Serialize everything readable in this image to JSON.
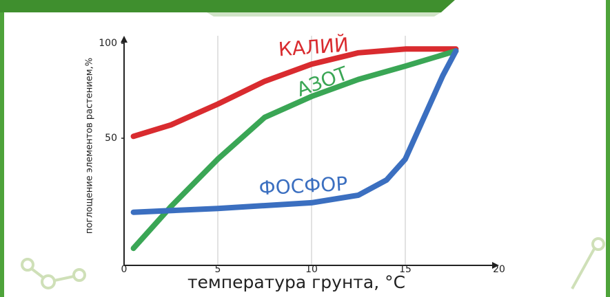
{
  "chart_data": {
    "type": "line",
    "y_label": "поглощение элементов растением,%",
    "x_label": "температура грунта, °C",
    "xlim": [
      0,
      20
    ],
    "xticks": [
      0,
      5,
      10,
      15,
      20
    ],
    "ylim": [
      -17,
      104
    ],
    "yticks": [
      50,
      100
    ],
    "grid": true,
    "series": [
      {
        "name": "КАЛИЙ",
        "color": "#d92b2f",
        "x": [
          0.5,
          2.5,
          5,
          7.5,
          10,
          12.5,
          15,
          17.7
        ],
        "values": [
          51,
          57,
          68,
          80,
          89,
          95,
          97,
          97
        ]
      },
      {
        "name": "АЗОТ",
        "color": "#3aa655",
        "x": [
          0.5,
          2.5,
          5,
          7.5,
          10,
          12.5,
          15,
          17.7
        ],
        "values": [
          -8,
          14,
          39,
          61,
          72,
          81,
          88,
          96
        ]
      },
      {
        "name": "ФОСФОР",
        "color": "#3b6fc0",
        "x": [
          0.5,
          5,
          10,
          12.5,
          14,
          15,
          16,
          17,
          17.7
        ],
        "values": [
          11,
          13,
          16,
          20,
          28,
          39,
          61,
          83,
          96
        ]
      }
    ]
  }
}
